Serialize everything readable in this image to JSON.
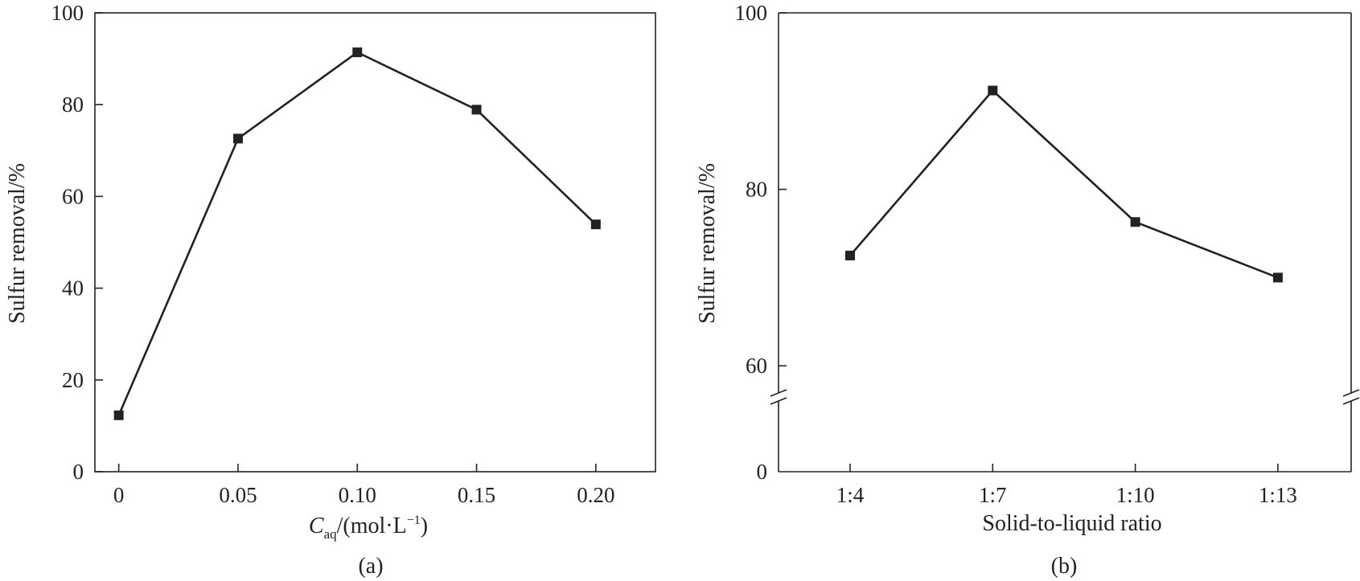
{
  "chart_data": [
    {
      "panel": "(a)",
      "type": "line",
      "xlabel": {
        "symbol": "C",
        "subscript": "aq",
        "unit_prefix": "/(mol·L",
        "unit_superscript": "−1",
        "unit_suffix": ")"
      },
      "ylabel": "Sulfur removal/%",
      "x_tick_labels": [
        "0",
        "0.05",
        "0.10",
        "0.15",
        "0.20"
      ],
      "y_tick_labels": [
        "0",
        "20",
        "40",
        "60",
        "80",
        "100"
      ],
      "xlim": [
        -0.01,
        0.225
      ],
      "ylim": [
        0,
        100
      ],
      "grid": false,
      "marker": "square",
      "series": [
        {
          "x": [
            0,
            0.05,
            0.1,
            0.15,
            0.2
          ],
          "values": [
            12.3,
            72.6,
            91.4,
            78.9,
            53.9
          ]
        }
      ]
    },
    {
      "panel": "(b)",
      "type": "line",
      "xlabel": "Solid-to-liquid ratio",
      "ylabel": "Sulfur removal/%",
      "categories": [
        "1:4",
        "1:7",
        "1:10",
        "1:13"
      ],
      "y_tick_labels": [
        "0",
        "60",
        "80",
        "100"
      ],
      "y_axis_break": true,
      "ylim": [
        48,
        100
      ],
      "grid": false,
      "marker": "square",
      "series": [
        {
          "values": [
            72.5,
            91.2,
            76.3,
            70.0
          ]
        }
      ]
    }
  ],
  "colors": {
    "line": "#222222",
    "marker": "#222222",
    "axis": "#222222",
    "background": "#ffffff"
  }
}
